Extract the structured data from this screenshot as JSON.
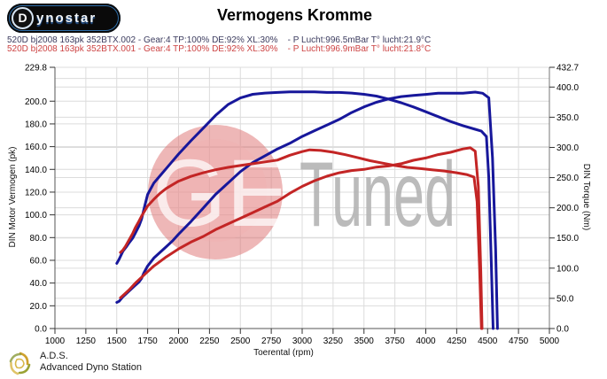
{
  "header": {
    "logo_d": "D",
    "logo_rest": "ynostar",
    "title": "Vermogens Kromme"
  },
  "legend": {
    "run1_text": "520D bj2008 163pk 352BTX.002 - Gear:4 TP:100% DE:92% XL:30%    - P Lucht:996.5mBar T° lucht:21.9°C",
    "run2_text": "520D bj2008 163pk 352BTX.001 - Gear:4 TP:100% DE:92% XL:30%    - P Lucht:996.9mBar T° lucht:21.8°C",
    "run1_color": "#3b3b5e",
    "run2_color": "#cc4343"
  },
  "watermark": {
    "ge": "GE",
    "tuned": "Tuned",
    "circle_color": "#dd7070",
    "ge_color": "#ffffff",
    "tuned_color": "#b2b2b2"
  },
  "footer": {
    "brand_abbr": "A.D.S.",
    "brand_full": "Advanced Dyno Station"
  },
  "chart_data": {
    "type": "line",
    "title": "Vermogens Kromme",
    "xlabel": "Toerental (rpm)",
    "ylabel_left": "DIN Motor Vermogen (pk)",
    "ylabel_right": "DIN Torque (Nm)",
    "xlim": [
      1000,
      5000
    ],
    "ylim_left": [
      0,
      229.8
    ],
    "ylim_right": [
      0,
      432.7
    ],
    "grid": true,
    "grid_color": "#dcdcdc",
    "x_ticks": {
      "values": [
        1000,
        1250,
        1500,
        1750,
        2000,
        2250,
        2500,
        2750,
        3000,
        3250,
        3500,
        3750,
        4000,
        4250,
        4500,
        4750,
        5000
      ],
      "labels": [
        "1000",
        "1250",
        "1500",
        "1750",
        "2000",
        "2250",
        "2500",
        "2750",
        "3000",
        "3250",
        "3500",
        "3750",
        "4000",
        "4250",
        "4500",
        "4750",
        "5000"
      ]
    },
    "y_left_ticks": {
      "values": [
        229.8,
        200,
        180,
        160,
        140,
        120,
        100,
        80,
        60,
        40,
        20,
        0
      ],
      "labels": [
        "229.8",
        "200.0",
        "180.0",
        "160.0",
        "140.0",
        "120.0",
        "100.0",
        "80.0",
        "60.0",
        "40.0",
        "20.0",
        "0.0"
      ]
    },
    "y_right_ticks": {
      "values": [
        432.7,
        400,
        350,
        300,
        250,
        200,
        150,
        100,
        50,
        0
      ],
      "labels": [
        "432.7",
        "400.0",
        "350.0",
        "300.0",
        "250.0",
        "200.0",
        "150.0",
        "100.0",
        "50.0",
        "0.0"
      ]
    },
    "grid_x": [
      1250,
      1500,
      1750,
      2000,
      2250,
      2500,
      2750,
      3000,
      3250,
      3500,
      3750,
      4000,
      4250,
      4500,
      4750
    ],
    "grid_y_left": [
      20,
      40,
      60,
      80,
      100,
      120,
      140,
      160,
      180,
      200,
      220
    ],
    "grid_y_right": [
      50,
      100,
      150,
      200,
      250,
      300,
      350,
      400
    ],
    "series": [
      {
        "name": "torque-curve-run-002",
        "axis": "right",
        "color": "#17179b",
        "points": [
          [
            1500,
            108
          ],
          [
            1520,
            115
          ],
          [
            1550,
            128
          ],
          [
            1580,
            136
          ],
          [
            1600,
            142
          ],
          [
            1630,
            150
          ],
          [
            1650,
            158
          ],
          [
            1680,
            170
          ],
          [
            1700,
            181
          ],
          [
            1730,
            206
          ],
          [
            1750,
            222
          ],
          [
            1800,
            241
          ],
          [
            1850,
            253
          ],
          [
            1900,
            265
          ],
          [
            1950,
            277
          ],
          [
            2000,
            289
          ],
          [
            2100,
            311
          ],
          [
            2200,
            332
          ],
          [
            2300,
            353
          ],
          [
            2400,
            371
          ],
          [
            2500,
            382
          ],
          [
            2600,
            388
          ],
          [
            2700,
            390
          ],
          [
            2800,
            391
          ],
          [
            2900,
            392
          ],
          [
            3000,
            392
          ],
          [
            3100,
            392
          ],
          [
            3200,
            391
          ],
          [
            3300,
            391
          ],
          [
            3400,
            390
          ],
          [
            3500,
            388
          ],
          [
            3600,
            385
          ],
          [
            3700,
            380
          ],
          [
            3800,
            374
          ],
          [
            3900,
            367
          ],
          [
            4000,
            359
          ],
          [
            4100,
            351
          ],
          [
            4200,
            343
          ],
          [
            4300,
            336
          ],
          [
            4400,
            330
          ],
          [
            4450,
            327
          ],
          [
            4490,
            318
          ],
          [
            4510,
            250
          ],
          [
            4530,
            110
          ],
          [
            4545,
            0
          ]
        ]
      },
      {
        "name": "power-curve-run-002",
        "axis": "left",
        "color": "#17179b",
        "points": [
          [
            1500,
            23
          ],
          [
            1520,
            24
          ],
          [
            1550,
            28
          ],
          [
            1600,
            33
          ],
          [
            1650,
            38
          ],
          [
            1680,
            41
          ],
          [
            1700,
            44
          ],
          [
            1720,
            49
          ],
          [
            1750,
            55
          ],
          [
            1800,
            62
          ],
          [
            1850,
            67
          ],
          [
            1900,
            72
          ],
          [
            1950,
            77
          ],
          [
            2000,
            83
          ],
          [
            2100,
            94
          ],
          [
            2200,
            106
          ],
          [
            2300,
            118
          ],
          [
            2400,
            128
          ],
          [
            2500,
            138
          ],
          [
            2600,
            146
          ],
          [
            2700,
            152
          ],
          [
            2800,
            158
          ],
          [
            2900,
            163
          ],
          [
            3000,
            169
          ],
          [
            3100,
            174
          ],
          [
            3200,
            179
          ],
          [
            3300,
            184
          ],
          [
            3400,
            190
          ],
          [
            3500,
            195
          ],
          [
            3600,
            199
          ],
          [
            3700,
            202
          ],
          [
            3800,
            204
          ],
          [
            3900,
            205
          ],
          [
            4000,
            206
          ],
          [
            4100,
            207
          ],
          [
            4200,
            207
          ],
          [
            4300,
            207
          ],
          [
            4400,
            208
          ],
          [
            4460,
            207
          ],
          [
            4510,
            203
          ],
          [
            4540,
            150
          ],
          [
            4565,
            70
          ],
          [
            4580,
            0
          ]
        ]
      },
      {
        "name": "torque-curve-run-001",
        "axis": "right",
        "color": "#c32525",
        "points": [
          [
            1530,
            126
          ],
          [
            1550,
            130
          ],
          [
            1570,
            136
          ],
          [
            1600,
            147
          ],
          [
            1630,
            158
          ],
          [
            1650,
            167
          ],
          [
            1680,
            178
          ],
          [
            1700,
            186
          ],
          [
            1730,
            196
          ],
          [
            1750,
            203
          ],
          [
            1800,
            214
          ],
          [
            1850,
            224
          ],
          [
            1900,
            232
          ],
          [
            1950,
            238
          ],
          [
            2000,
            244
          ],
          [
            2100,
            252
          ],
          [
            2200,
            258
          ],
          [
            2300,
            263
          ],
          [
            2400,
            267
          ],
          [
            2500,
            270
          ],
          [
            2600,
            273
          ],
          [
            2700,
            276
          ],
          [
            2800,
            279
          ],
          [
            2900,
            287
          ],
          [
            3000,
            293
          ],
          [
            3060,
            296
          ],
          [
            3150,
            295
          ],
          [
            3250,
            292
          ],
          [
            3350,
            288
          ],
          [
            3450,
            283
          ],
          [
            3550,
            278
          ],
          [
            3650,
            274
          ],
          [
            3750,
            270
          ],
          [
            3850,
            267
          ],
          [
            3950,
            265
          ],
          [
            4050,
            263
          ],
          [
            4150,
            261
          ],
          [
            4250,
            258
          ],
          [
            4330,
            255
          ],
          [
            4390,
            251
          ],
          [
            4415,
            210
          ],
          [
            4435,
            100
          ],
          [
            4450,
            0
          ]
        ]
      },
      {
        "name": "power-curve-run-001",
        "axis": "left",
        "color": "#c32525",
        "points": [
          [
            1530,
            27
          ],
          [
            1560,
            30
          ],
          [
            1600,
            34
          ],
          [
            1650,
            40
          ],
          [
            1700,
            45
          ],
          [
            1750,
            50
          ],
          [
            1800,
            55
          ],
          [
            1850,
            59
          ],
          [
            1900,
            63
          ],
          [
            2000,
            70
          ],
          [
            2100,
            76
          ],
          [
            2200,
            81
          ],
          [
            2300,
            87
          ],
          [
            2400,
            92
          ],
          [
            2500,
            97
          ],
          [
            2600,
            102
          ],
          [
            2700,
            107
          ],
          [
            2800,
            112
          ],
          [
            2900,
            119
          ],
          [
            3000,
            125
          ],
          [
            3100,
            130
          ],
          [
            3200,
            134
          ],
          [
            3300,
            137
          ],
          [
            3400,
            139
          ],
          [
            3500,
            140
          ],
          [
            3600,
            142
          ],
          [
            3700,
            143
          ],
          [
            3800,
            145
          ],
          [
            3900,
            148
          ],
          [
            4000,
            150
          ],
          [
            4100,
            153
          ],
          [
            4200,
            155
          ],
          [
            4300,
            158
          ],
          [
            4360,
            159
          ],
          [
            4400,
            156
          ],
          [
            4425,
            125
          ],
          [
            4445,
            50
          ],
          [
            4455,
            0
          ]
        ]
      }
    ]
  }
}
